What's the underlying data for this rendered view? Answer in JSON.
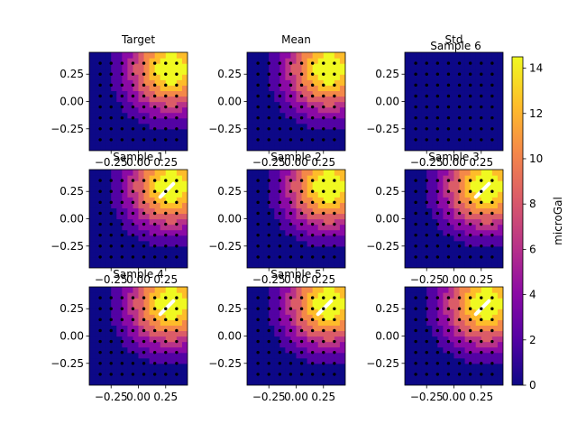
{
  "chart_data": {
    "type": "heatmap",
    "grid": false,
    "legend": "none",
    "xlim": [
      -0.45,
      0.45
    ],
    "ylim": [
      -0.45,
      0.45
    ],
    "xticks": [
      -0.25,
      0.0,
      0.25
    ],
    "yticks": [
      0.25,
      0.0,
      -0.25
    ],
    "xtick_labels": [
      "−0.25",
      "0.00",
      "0.25"
    ],
    "ytick_labels": [
      "0.25",
      "0.00",
      "−0.25"
    ],
    "colormap": [
      "#0d0887",
      "#5302a3",
      "#8b0aa5",
      "#b83289",
      "#db5c68",
      "#f48849",
      "#febc2a",
      "#f0f921"
    ],
    "colorbar": {
      "label": "microGal",
      "min": 0,
      "max": 14.5,
      "ticks": [
        0,
        2,
        4,
        6,
        8,
        10,
        12,
        14
      ],
      "tick_labels": [
        "0",
        "2",
        "4",
        "6",
        "8",
        "10",
        "12",
        "14"
      ]
    },
    "field": {
      "center": [
        0.3,
        0.3
      ],
      "peak": 14.5,
      "width": 0.28
    },
    "station_points": {
      "x": [
        -0.35,
        -0.25,
        -0.15,
        -0.05,
        0.05,
        0.15,
        0.25,
        0.35
      ],
      "y": [
        -0.35,
        -0.25,
        -0.15,
        -0.05,
        0.05,
        0.15,
        0.25,
        0.35
      ]
    },
    "panels": [
      {
        "title": "Target",
        "std": false,
        "hole": false
      },
      {
        "title": "Mean",
        "std": false,
        "hole": false
      },
      {
        "title": "Std",
        "subtitle": "Sample 6",
        "std": true,
        "hole": false
      },
      {
        "title": "Sample 1",
        "std": false,
        "hole": true
      },
      {
        "title": "Sample 2",
        "std": false,
        "hole": false
      },
      {
        "title": "Sample 3",
        "std": false,
        "hole": true
      },
      {
        "title": "Sample 4",
        "std": false,
        "hole": true
      },
      {
        "title": "Sample 5",
        "std": false,
        "hole": true
      },
      {
        "title": "",
        "std": false,
        "hole": true
      }
    ]
  }
}
